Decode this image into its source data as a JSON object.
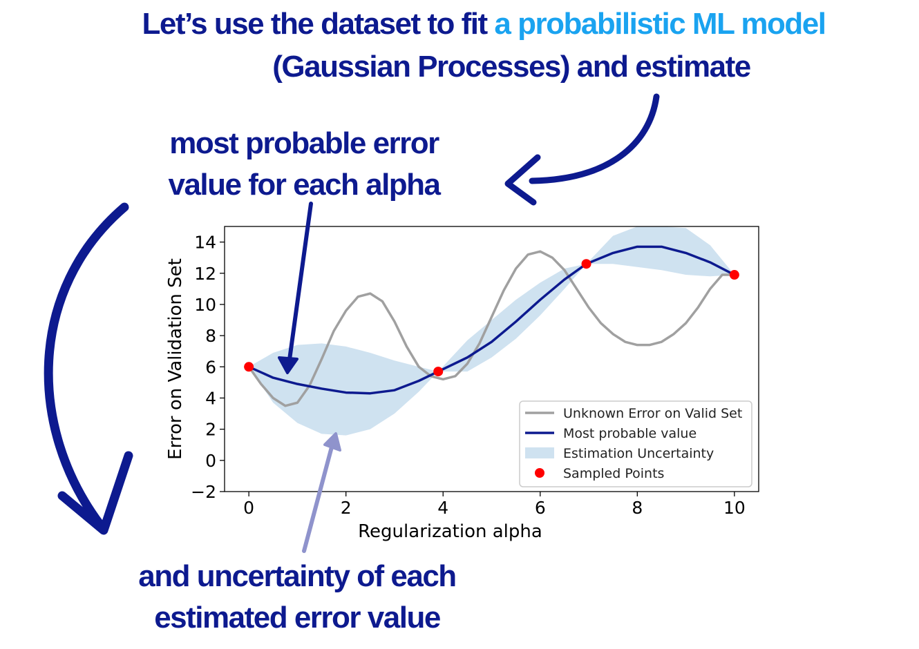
{
  "header": {
    "title_prefix": "Let’s use the dataset to fit ",
    "title_highlight": "a probabilistic ML model",
    "title_line2": "(Gaussian Processes) and estimate"
  },
  "annotations": {
    "top_line1": "most probable error",
    "top_line2": "value for each alpha",
    "bottom_line1": "and uncertainty of each",
    "bottom_line2": "estimated error value"
  },
  "colors": {
    "heading": "#0d1a8f",
    "highlight": "#1aa3f0",
    "mean_line": "#0d1a8f",
    "true_line": "#a0a0a0",
    "band": "#cfe2f0",
    "points": "#ff0000",
    "light_arrow": "#8f93cc"
  },
  "chart_data": {
    "type": "line",
    "xlabel": "Regularization alpha",
    "ylabel": "Error on Validation Set",
    "xlim": [
      -0.5,
      10.5
    ],
    "ylim": [
      -2,
      15
    ],
    "xticks": [
      0,
      2,
      4,
      6,
      8,
      10
    ],
    "yticks": [
      -2,
      0,
      2,
      4,
      6,
      8,
      10,
      12,
      14
    ],
    "grid": false,
    "legend_position": "lower-right",
    "series": [
      {
        "name": "Unknown Error on Valid Set",
        "x": [
          0,
          0.25,
          0.5,
          0.75,
          1,
          1.25,
          1.5,
          1.75,
          2,
          2.25,
          2.5,
          2.75,
          3,
          3.25,
          3.5,
          3.75,
          4,
          4.25,
          4.5,
          4.75,
          5,
          5.25,
          5.5,
          5.75,
          6,
          6.25,
          6.5,
          6.75,
          7,
          7.25,
          7.5,
          7.75,
          8,
          8.25,
          8.5,
          8.75,
          9,
          9.25,
          9.5,
          9.75,
          10
        ],
        "y": [
          6.0,
          4.9,
          4.0,
          3.5,
          3.7,
          4.8,
          6.5,
          8.3,
          9.6,
          10.5,
          10.7,
          10.2,
          8.9,
          7.3,
          6.0,
          5.4,
          5.2,
          5.4,
          6.2,
          7.5,
          9.2,
          10.9,
          12.3,
          13.2,
          13.4,
          13.0,
          12.2,
          11.0,
          9.8,
          8.8,
          8.1,
          7.6,
          7.4,
          7.4,
          7.6,
          8.1,
          8.8,
          9.8,
          11.0,
          11.9,
          11.9
        ]
      },
      {
        "name": "Most probable value",
        "x": [
          0,
          0.5,
          1,
          1.5,
          2,
          2.5,
          3,
          3.5,
          3.9,
          4.5,
          5,
          5.5,
          6,
          6.5,
          6.95,
          7.5,
          8,
          8.5,
          9,
          9.5,
          10
        ],
        "y": [
          6.0,
          5.3,
          4.9,
          4.6,
          4.35,
          4.3,
          4.5,
          5.1,
          5.7,
          6.6,
          7.6,
          8.9,
          10.3,
          11.6,
          12.6,
          13.3,
          13.7,
          13.7,
          13.3,
          12.7,
          11.9
        ]
      }
    ],
    "uncertainty_band": {
      "name": "Estimation Uncertainty",
      "x": [
        0,
        0.5,
        1,
        1.5,
        2,
        2.5,
        3,
        3.5,
        3.9,
        4.5,
        5,
        5.5,
        6,
        6.5,
        6.95,
        7.5,
        8,
        8.5,
        9,
        9.5,
        10
      ],
      "lower": [
        6.0,
        3.7,
        2.4,
        1.7,
        1.6,
        2.0,
        3.0,
        4.4,
        5.7,
        5.7,
        6.6,
        7.8,
        9.3,
        11.0,
        12.6,
        12.6,
        12.4,
        12.2,
        11.9,
        11.8,
        11.9
      ],
      "upper": [
        6.0,
        6.9,
        7.4,
        7.5,
        7.3,
        6.9,
        6.4,
        6.0,
        5.7,
        7.7,
        9.0,
        10.3,
        11.4,
        12.3,
        12.6,
        14.4,
        15.0,
        15.0,
        14.9,
        13.8,
        11.9
      ]
    },
    "sampled_points": {
      "name": "Sampled Points",
      "x": [
        0,
        3.9,
        6.95,
        10
      ],
      "y": [
        6.0,
        5.7,
        12.6,
        11.9
      ]
    }
  }
}
